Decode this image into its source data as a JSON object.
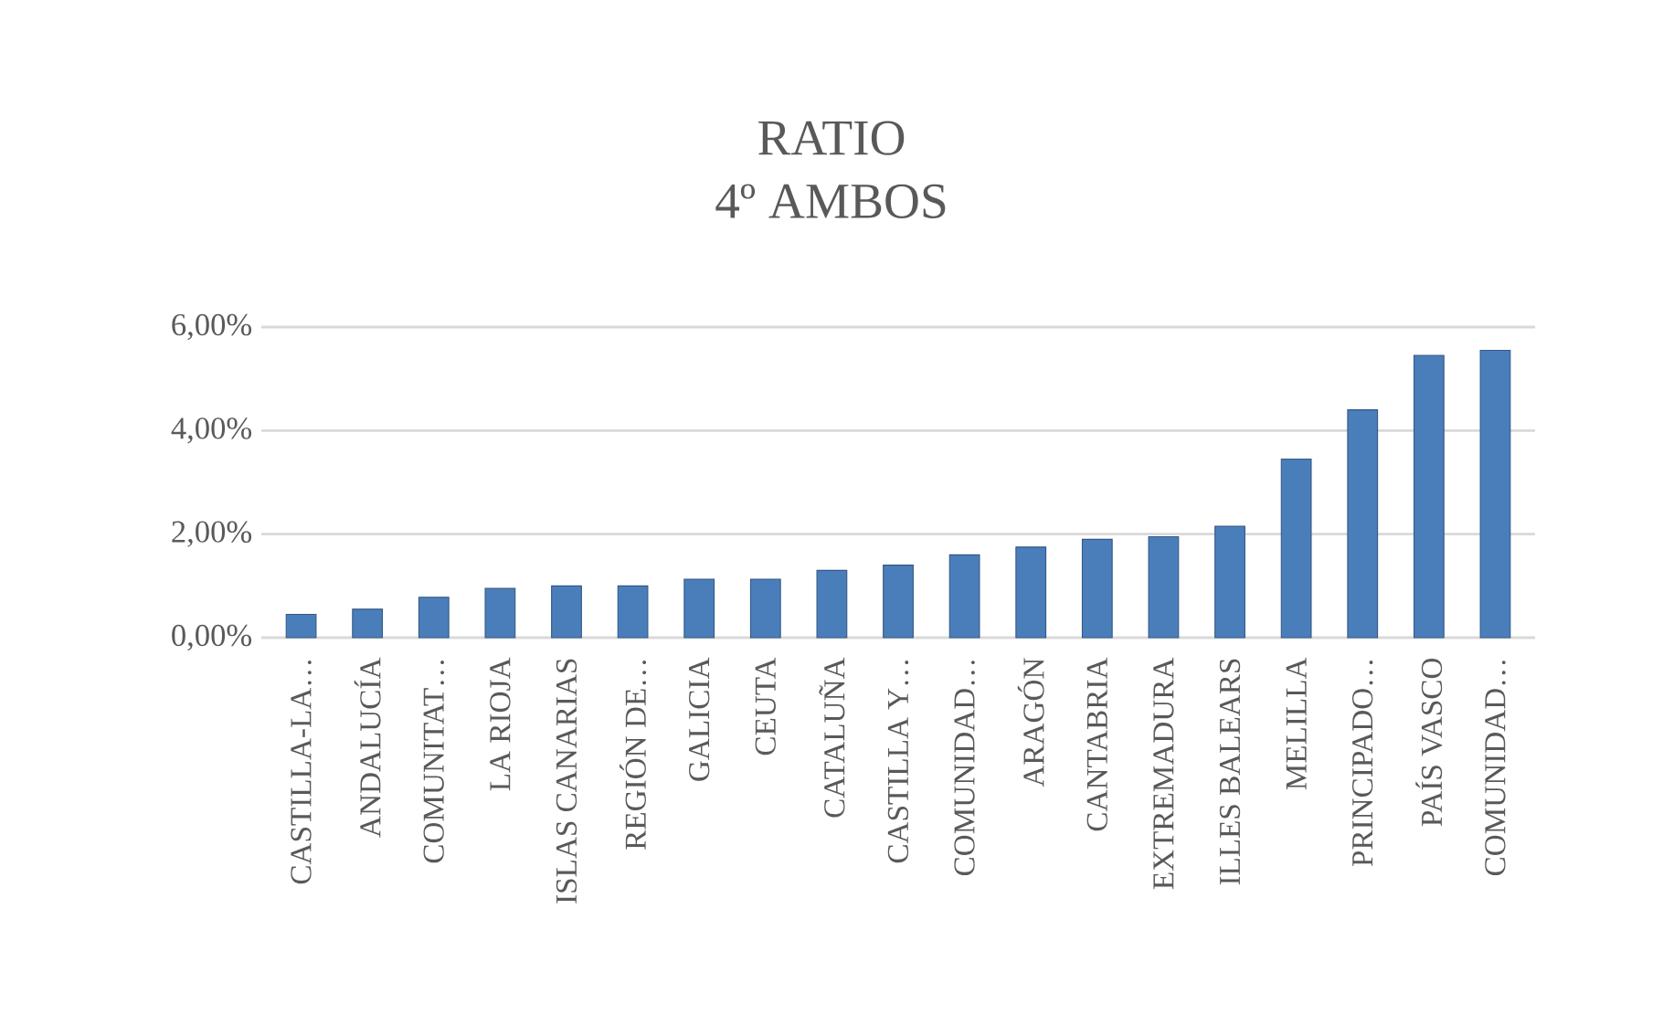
{
  "chart_data": {
    "type": "bar",
    "title": "RATIO\n4º AMBOS",
    "categories": [
      "CASTILLA-LA…",
      "ANDALUCÍA",
      "COMUNITAT…",
      "LA RIOJA",
      "ISLAS CANARIAS",
      "REGIÓN DE…",
      "GALICIA",
      "CEUTA",
      "CATALUÑA",
      "CASTILLA Y…",
      "COMUNIDAD…",
      "ARAGÓN",
      "CANTABRIA",
      "EXTREMADURA",
      "ILLES BALEARS",
      "MELILLA",
      "PRINCIPADO…",
      "PAÍS VASCO",
      "COMUNIDAD…"
    ],
    "values": [
      0.45,
      0.55,
      0.78,
      0.95,
      1.0,
      1.0,
      1.13,
      1.13,
      1.3,
      1.4,
      1.6,
      1.75,
      1.9,
      1.95,
      2.15,
      3.45,
      4.4,
      5.45,
      5.55
    ],
    "color": "#4a7ebb",
    "ylim": [
      0,
      6
    ],
    "yticks": [
      {
        "value": 0,
        "label": "0,00%"
      },
      {
        "value": 2,
        "label": "2,00%"
      },
      {
        "value": 4,
        "label": "4,00%"
      },
      {
        "value": 6,
        "label": "6,00%"
      }
    ],
    "grid": "y"
  }
}
